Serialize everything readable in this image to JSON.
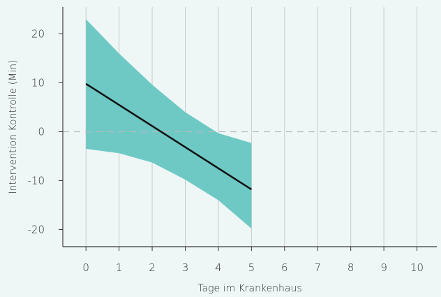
{
  "chart_data": {
    "type": "line",
    "title": "",
    "xlabel": "Tage im Krankenhaus",
    "ylabel": "Intervention Kontrolle (Min)",
    "xlim": [
      -0.7,
      10.6
    ],
    "ylim": [
      -23.5,
      25.5
    ],
    "x_ticks": [
      0,
      1,
      2,
      3,
      4,
      5,
      6,
      7,
      8,
      9,
      10
    ],
    "y_ticks": [
      -20,
      -10,
      0,
      10,
      20
    ],
    "x_tick_labels": [
      "0",
      "1",
      "2",
      "3",
      "4",
      "5",
      "6",
      "7",
      "8",
      "9",
      "10"
    ],
    "y_tick_labels": [
      "-20",
      "-10",
      "0",
      "10",
      "20"
    ],
    "grid": true,
    "reference_line": {
      "y": 0,
      "style": "dashed"
    },
    "series": [
      {
        "x": [
          0,
          5
        ],
        "y": [
          9.8,
          -11.8
        ]
      }
    ],
    "band": {
      "x": [
        0,
        1,
        2,
        3,
        4,
        5
      ],
      "upper": [
        23,
        16,
        9.6,
        4.0,
        -0.3,
        -2.3
      ],
      "lower": [
        -3.5,
        -4.4,
        -6.3,
        -9.8,
        -14.0,
        -19.8
      ]
    },
    "colors": {
      "band": "#6ec9c5",
      "line": "#111111",
      "grid": "#c6cbcb",
      "zero_line": "#b5bcbc",
      "frame": "#3a3a3a"
    }
  }
}
